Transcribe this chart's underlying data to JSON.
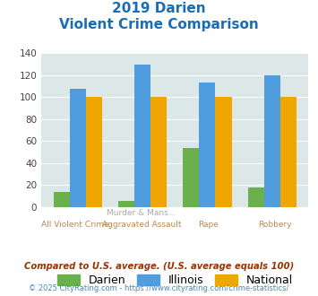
{
  "title_line1": "2019 Darien",
  "title_line2": "Violent Crime Comparison",
  "cat_labels_top": [
    "",
    "Murder & Mans...",
    "",
    ""
  ],
  "cat_labels_bot": [
    "All Violent Crime",
    "Aggravated Assault",
    "Rape",
    "Robbery"
  ],
  "darien": [
    14,
    6,
    54,
    18
  ],
  "illinois": [
    108,
    130,
    113,
    120
  ],
  "national": [
    100,
    100,
    100,
    100
  ],
  "darien_color": "#6ab04c",
  "illinois_color": "#4f9dde",
  "national_color": "#f0a500",
  "bg_color": "#dce8e8",
  "ylim": [
    0,
    140
  ],
  "yticks": [
    0,
    20,
    40,
    60,
    80,
    100,
    120,
    140
  ],
  "title_color": "#1a6db5",
  "xlabel_top_color": "#aaaaaa",
  "xlabel_bot_color": "#bb8855",
  "footnote1": "Compared to U.S. average. (U.S. average equals 100)",
  "footnote2": "© 2025 CityRating.com - https://www.cityrating.com/crime-statistics/",
  "footnote1_color": "#993300",
  "footnote2_color": "#4488cc",
  "legend_labels": [
    "Darien",
    "Illinois",
    "National"
  ]
}
